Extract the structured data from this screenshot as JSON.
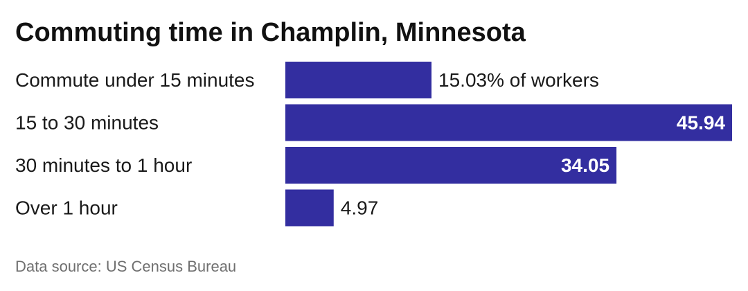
{
  "chart_data": {
    "type": "bar",
    "orientation": "horizontal",
    "title": "Commuting time in Champlin, Minnesota",
    "categories": [
      "Commute under 15 minutes",
      "15 to 30 minutes",
      "30 minutes to 1 hour",
      "Over 1 hour"
    ],
    "values": [
      15.03,
      45.94,
      34.05,
      4.97
    ],
    "value_labels": [
      "15.03% of workers",
      "45.94",
      "34.05",
      "4.97"
    ],
    "unit": "% of workers",
    "xlim": [
      0,
      45.94
    ],
    "grid": false,
    "legend": "none",
    "bar_color": "#332ea0",
    "source": "Data source: US Census Bureau"
  }
}
